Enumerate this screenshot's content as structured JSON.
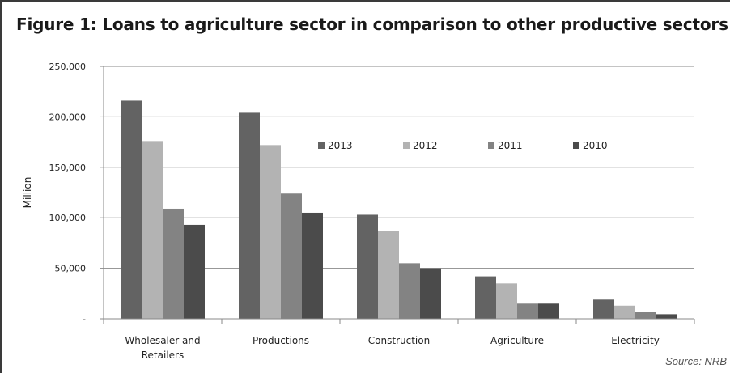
{
  "figure": {
    "title": "Figure 1: Loans to agriculture sector in comparison to other productive sectors",
    "source": "Source: NRB"
  },
  "chart_data": {
    "type": "bar",
    "title": "",
    "xlabel": "",
    "ylabel": "Million",
    "ylim": [
      0,
      250000
    ],
    "yticks": [
      0,
      50000,
      100000,
      150000,
      200000,
      250000
    ],
    "ytick_labels": [
      "-",
      "50,000",
      "100,000",
      "150,000",
      "200,000",
      "250,000"
    ],
    "grid": true,
    "legend_position": "top-right",
    "categories": [
      "Wholesaler and Retailers",
      "Productions",
      "Construction",
      "Agriculture",
      "Electricity"
    ],
    "series": [
      {
        "name": "2013",
        "color": "#636363",
        "values": [
          216000,
          204000,
          103000,
          42000,
          19000
        ]
      },
      {
        "name": "2012",
        "color": "#b3b3b3",
        "values": [
          176000,
          172000,
          87000,
          35000,
          13000
        ]
      },
      {
        "name": "2011",
        "color": "#838383",
        "values": [
          109000,
          124000,
          55000,
          15000,
          6500
        ]
      },
      {
        "name": "2010",
        "color": "#4b4b4b",
        "values": [
          93000,
          105000,
          50000,
          15000,
          4500
        ]
      }
    ]
  }
}
